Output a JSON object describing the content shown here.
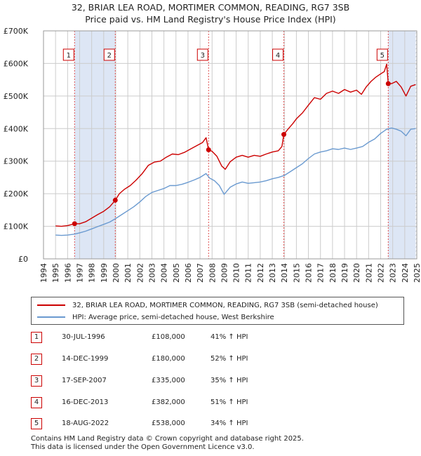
{
  "header": {
    "title_line1": "32, BRIAR LEA ROAD, MORTIMER COMMON, READING, RG7 3SB",
    "title_line2": "Price paid vs. HM Land Registry's House Price Index (HPI)"
  },
  "colors": {
    "property_line": "#cc0000",
    "hpi_line": "#6a9ad0",
    "shade": "#dde6f5",
    "grid": "#cccccc",
    "event_line": "#e05050"
  },
  "chart_data": {
    "type": "line",
    "xlim": [
      1994,
      2025
    ],
    "ylim": [
      0,
      700000
    ],
    "x_ticks": [
      1994,
      1995,
      1996,
      1997,
      1998,
      1999,
      2000,
      2001,
      2002,
      2003,
      2004,
      2005,
      2006,
      2007,
      2008,
      2009,
      2010,
      2011,
      2012,
      2013,
      2014,
      2015,
      2016,
      2017,
      2018,
      2019,
      2020,
      2021,
      2022,
      2023,
      2024,
      2025
    ],
    "y_ticks": [
      {
        "value": 0,
        "label": "£0"
      },
      {
        "value": 100000,
        "label": "£100K"
      },
      {
        "value": 200000,
        "label": "£200K"
      },
      {
        "value": 300000,
        "label": "£300K"
      },
      {
        "value": 400000,
        "label": "£400K"
      },
      {
        "value": 500000,
        "label": "£500K"
      },
      {
        "value": 600000,
        "label": "£600K"
      },
      {
        "value": 700000,
        "label": "£700K"
      }
    ],
    "shaded_ranges": [
      [
        1996.58,
        1999.96
      ],
      [
        2022.63,
        2024.9
      ]
    ],
    "hatched_range": [
      2024.9,
      2025
    ],
    "series": [
      {
        "name": "32, BRIAR LEA ROAD, MORTIMER COMMON, READING, RG7 3SB (semi-detached house)",
        "color": "#cc0000",
        "points": [
          [
            1995.0,
            101000
          ],
          [
            1995.5,
            100000
          ],
          [
            1996.0,
            102000
          ],
          [
            1996.58,
            108000
          ],
          [
            1997.0,
            108000
          ],
          [
            1997.5,
            114000
          ],
          [
            1998.0,
            125000
          ],
          [
            1998.5,
            136000
          ],
          [
            1999.0,
            146000
          ],
          [
            1999.5,
            160000
          ],
          [
            1999.96,
            180000
          ],
          [
            2000.3,
            200000
          ],
          [
            2000.7,
            213000
          ],
          [
            2001.2,
            225000
          ],
          [
            2001.7,
            242000
          ],
          [
            2002.2,
            262000
          ],
          [
            2002.7,
            287000
          ],
          [
            2003.2,
            297000
          ],
          [
            2003.7,
            300000
          ],
          [
            2004.2,
            312000
          ],
          [
            2004.7,
            322000
          ],
          [
            2005.2,
            320000
          ],
          [
            2005.7,
            327000
          ],
          [
            2006.2,
            337000
          ],
          [
            2006.7,
            347000
          ],
          [
            2007.2,
            357000
          ],
          [
            2007.5,
            372000
          ],
          [
            2007.71,
            335000
          ],
          [
            2008.0,
            330000
          ],
          [
            2008.4,
            315000
          ],
          [
            2008.8,
            285000
          ],
          [
            2009.1,
            275000
          ],
          [
            2009.5,
            298000
          ],
          [
            2010.0,
            312000
          ],
          [
            2010.5,
            318000
          ],
          [
            2011.0,
            312000
          ],
          [
            2011.5,
            318000
          ],
          [
            2012.0,
            315000
          ],
          [
            2012.5,
            322000
          ],
          [
            2013.0,
            328000
          ],
          [
            2013.5,
            332000
          ],
          [
            2013.8,
            345000
          ],
          [
            2013.96,
            382000
          ],
          [
            2014.3,
            398000
          ],
          [
            2014.7,
            415000
          ],
          [
            2015.0,
            430000
          ],
          [
            2015.5,
            448000
          ],
          [
            2016.0,
            472000
          ],
          [
            2016.5,
            495000
          ],
          [
            2017.0,
            490000
          ],
          [
            2017.5,
            508000
          ],
          [
            2018.0,
            515000
          ],
          [
            2018.5,
            508000
          ],
          [
            2019.0,
            520000
          ],
          [
            2019.5,
            512000
          ],
          [
            2020.0,
            518000
          ],
          [
            2020.4,
            505000
          ],
          [
            2020.8,
            528000
          ],
          [
            2021.2,
            545000
          ],
          [
            2021.6,
            558000
          ],
          [
            2022.0,
            568000
          ],
          [
            2022.3,
            575000
          ],
          [
            2022.5,
            598000
          ],
          [
            2022.63,
            538000
          ],
          [
            2022.9,
            538000
          ],
          [
            2023.3,
            545000
          ],
          [
            2023.7,
            528000
          ],
          [
            2024.1,
            500000
          ],
          [
            2024.5,
            530000
          ],
          [
            2024.9,
            535000
          ]
        ]
      },
      {
        "name": "HPI: Average price, semi-detached house, West Berkshire",
        "color": "#6a9ad0",
        "points": [
          [
            1995.0,
            73000
          ],
          [
            1995.5,
            72000
          ],
          [
            1996.0,
            73000
          ],
          [
            1996.58,
            76000
          ],
          [
            1997.0,
            80000
          ],
          [
            1997.5,
            85000
          ],
          [
            1998.0,
            92000
          ],
          [
            1998.5,
            99000
          ],
          [
            1999.0,
            106000
          ],
          [
            1999.5,
            113000
          ],
          [
            2000.0,
            124000
          ],
          [
            2000.5,
            136000
          ],
          [
            2001.0,
            148000
          ],
          [
            2001.5,
            160000
          ],
          [
            2002.0,
            175000
          ],
          [
            2002.5,
            192000
          ],
          [
            2003.0,
            204000
          ],
          [
            2003.5,
            210000
          ],
          [
            2004.0,
            216000
          ],
          [
            2004.5,
            225000
          ],
          [
            2005.0,
            225000
          ],
          [
            2005.5,
            229000
          ],
          [
            2006.0,
            235000
          ],
          [
            2006.5,
            242000
          ],
          [
            2007.0,
            250000
          ],
          [
            2007.5,
            262000
          ],
          [
            2007.8,
            248000
          ],
          [
            2008.2,
            240000
          ],
          [
            2008.6,
            225000
          ],
          [
            2009.0,
            198000
          ],
          [
            2009.5,
            220000
          ],
          [
            2010.0,
            230000
          ],
          [
            2010.5,
            236000
          ],
          [
            2011.0,
            232000
          ],
          [
            2011.5,
            234000
          ],
          [
            2012.0,
            236000
          ],
          [
            2012.5,
            240000
          ],
          [
            2013.0,
            246000
          ],
          [
            2013.5,
            250000
          ],
          [
            2014.0,
            256000
          ],
          [
            2014.5,
            268000
          ],
          [
            2015.0,
            280000
          ],
          [
            2015.5,
            292000
          ],
          [
            2016.0,
            308000
          ],
          [
            2016.5,
            322000
          ],
          [
            2017.0,
            328000
          ],
          [
            2017.5,
            332000
          ],
          [
            2018.0,
            338000
          ],
          [
            2018.5,
            336000
          ],
          [
            2019.0,
            340000
          ],
          [
            2019.5,
            336000
          ],
          [
            2020.0,
            340000
          ],
          [
            2020.5,
            345000
          ],
          [
            2021.0,
            358000
          ],
          [
            2021.5,
            368000
          ],
          [
            2022.0,
            385000
          ],
          [
            2022.5,
            398000
          ],
          [
            2022.9,
            402000
          ],
          [
            2023.3,
            398000
          ],
          [
            2023.7,
            392000
          ],
          [
            2024.1,
            378000
          ],
          [
            2024.5,
            398000
          ],
          [
            2024.9,
            400000
          ]
        ]
      }
    ],
    "sales": [
      {
        "label": "1",
        "x": 1996.58,
        "price": 108000
      },
      {
        "label": "2",
        "x": 1999.96,
        "price": 180000
      },
      {
        "label": "3",
        "x": 2007.71,
        "price": 335000
      },
      {
        "label": "4",
        "x": 2013.96,
        "price": 382000
      },
      {
        "label": "5",
        "x": 2022.63,
        "price": 538000
      }
    ]
  },
  "legend": {
    "property_label": "32, BRIAR LEA ROAD, MORTIMER COMMON, READING, RG7 3SB (semi-detached house)",
    "hpi_label": "HPI: Average price, semi-detached house, West Berkshire"
  },
  "sales_table": [
    {
      "num": "1",
      "date": "30-JUL-1996",
      "price": "£108,000",
      "hpi": "41% ↑ HPI"
    },
    {
      "num": "2",
      "date": "14-DEC-1999",
      "price": "£180,000",
      "hpi": "52% ↑ HPI"
    },
    {
      "num": "3",
      "date": "17-SEP-2007",
      "price": "£335,000",
      "hpi": "35% ↑ HPI"
    },
    {
      "num": "4",
      "date": "16-DEC-2013",
      "price": "£382,000",
      "hpi": "51% ↑ HPI"
    },
    {
      "num": "5",
      "date": "18-AUG-2022",
      "price": "£538,000",
      "hpi": "34% ↑ HPI"
    }
  ],
  "footer": {
    "line1": "Contains HM Land Registry data © Crown copyright and database right 2025.",
    "line2": "This data is licensed under the Open Government Licence v3.0."
  }
}
